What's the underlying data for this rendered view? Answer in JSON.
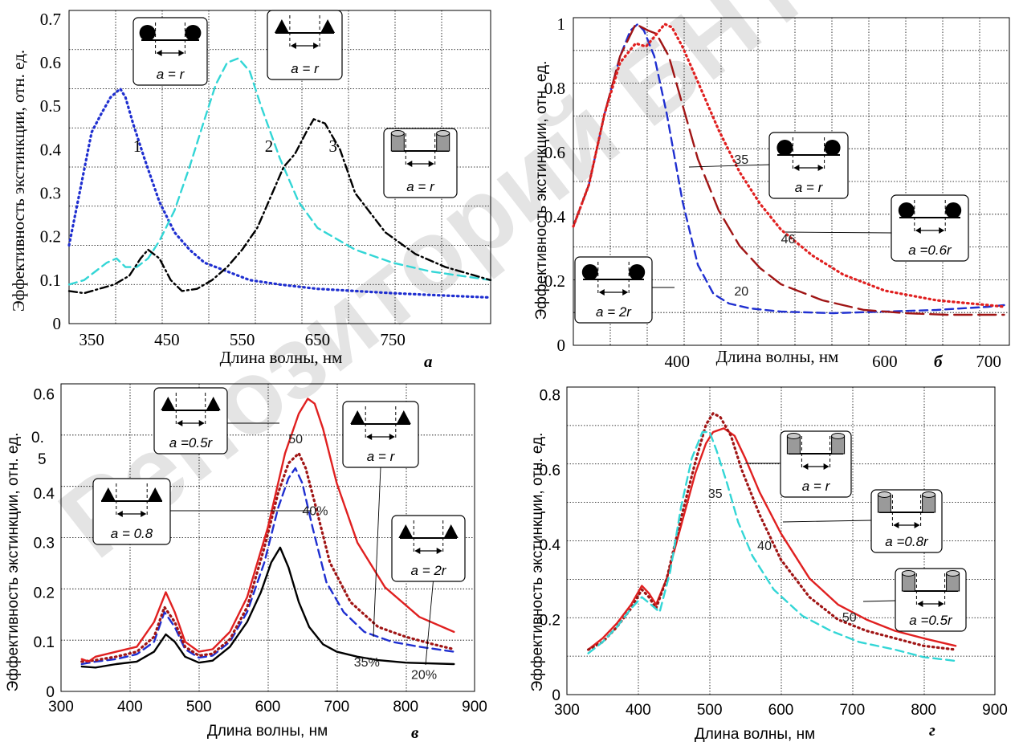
{
  "chart_data": [
    {
      "id": "a",
      "type": "line",
      "panel_label": "а",
      "xlabel": "Длина волны, нм",
      "ylabel": "Эффективность экстинкции, отн. ед.",
      "xlim": [
        320,
        880
      ],
      "ylim": [
        0,
        0.72
      ],
      "xticks": [
        350,
        450,
        550,
        650,
        750
      ],
      "xtick_labels": [
        "350",
        "450",
        "550",
        "650",
        "750"
      ],
      "yticks": [
        0,
        0.1,
        0.2,
        0.3,
        0.4,
        0.5,
        0.6,
        0.7
      ],
      "ytick_labels": [
        "0",
        "0.1",
        "0.2",
        "0.3",
        "0.4",
        "0.5",
        "0.6",
        "0.7"
      ],
      "grid": true,
      "series": [
        {
          "color": "#1f2fd0",
          "style": "dotted",
          "x": [
            320,
            335,
            350,
            362,
            375,
            388,
            395,
            405,
            420,
            440,
            460,
            480,
            500,
            530,
            560,
            600,
            650,
            700,
            750,
            800,
            880
          ],
          "y": [
            0.18,
            0.31,
            0.44,
            0.48,
            0.52,
            0.54,
            0.52,
            0.46,
            0.38,
            0.28,
            0.21,
            0.17,
            0.14,
            0.12,
            0.1,
            0.09,
            0.08,
            0.075,
            0.07,
            0.066,
            0.06
          ]
        },
        {
          "color": "#33d6d6",
          "style": "dashed",
          "x": [
            320,
            340,
            355,
            370,
            383,
            395,
            410,
            425,
            440,
            460,
            480,
            500,
            515,
            530,
            545,
            560,
            575,
            600,
            625,
            650,
            700,
            750,
            800,
            880
          ],
          "y": [
            0.09,
            0.1,
            0.12,
            0.14,
            0.15,
            0.13,
            0.13,
            0.15,
            0.19,
            0.26,
            0.36,
            0.47,
            0.55,
            0.6,
            0.61,
            0.58,
            0.5,
            0.38,
            0.28,
            0.22,
            0.17,
            0.14,
            0.12,
            0.1
          ]
        },
        {
          "color": "#000000",
          "style": "dashdot",
          "x": [
            320,
            340,
            360,
            380,
            400,
            415,
            425,
            440,
            455,
            470,
            490,
            510,
            530,
            550,
            570,
            590,
            605,
            620,
            635,
            645,
            660,
            680,
            700,
            740,
            780,
            820,
            880
          ],
          "y": [
            0.075,
            0.07,
            0.08,
            0.09,
            0.11,
            0.15,
            0.17,
            0.15,
            0.1,
            0.075,
            0.08,
            0.1,
            0.13,
            0.17,
            0.22,
            0.3,
            0.36,
            0.39,
            0.44,
            0.47,
            0.46,
            0.4,
            0.3,
            0.21,
            0.16,
            0.13,
            0.1
          ]
        }
      ],
      "curve_labels": [
        {
          "text": "1",
          "x": 405,
          "y": 0.395
        },
        {
          "text": "2",
          "x": 580,
          "y": 0.395
        },
        {
          "text": "3",
          "x": 665,
          "y": 0.395
        }
      ],
      "insets": [
        {
          "shape": "spheres",
          "label": "a = r"
        },
        {
          "shape": "triangles",
          "label": "a = r"
        },
        {
          "shape": "cylinders",
          "label": "a = r"
        }
      ]
    },
    {
      "id": "b",
      "type": "line",
      "panel_label": "б",
      "xlabel": "Длина волны, нм",
      "ylabel": "Эффективность экстинкции, отн. ед.",
      "xlim": [
        300,
        720
      ],
      "ylim": [
        0,
        1.02
      ],
      "xticks": [
        400,
        600,
        700
      ],
      "xtick_labels": [
        "400",
        "600",
        "700"
      ],
      "yticks": [
        0,
        0.2,
        0.4,
        0.6,
        0.8,
        1.0
      ],
      "ytick_labels": [
        "0",
        "0.2",
        "0.4",
        "0.6",
        "0.8",
        "1"
      ],
      "grid": true,
      "series": [
        {
          "color": "#1f2fd0",
          "style": "dashed",
          "x": [
            300,
            315,
            330,
            345,
            355,
            362,
            368,
            378,
            390,
            405,
            420,
            435,
            450,
            470,
            500,
            550,
            600,
            650,
            700,
            715
          ],
          "y": [
            0.37,
            0.5,
            0.72,
            0.9,
            0.98,
            1.0,
            0.98,
            0.9,
            0.72,
            0.45,
            0.25,
            0.16,
            0.13,
            0.115,
            0.105,
            0.1,
            0.105,
            0.11,
            0.12,
            0.125
          ]
        },
        {
          "color": "#a01515",
          "style": "longdash",
          "x": [
            300,
            315,
            330,
            345,
            360,
            372,
            380,
            392,
            405,
            420,
            440,
            460,
            480,
            500,
            540,
            580,
            620,
            660,
            700,
            715
          ],
          "y": [
            0.37,
            0.5,
            0.72,
            0.9,
            1.0,
            0.98,
            0.97,
            0.9,
            0.75,
            0.58,
            0.42,
            0.31,
            0.24,
            0.19,
            0.14,
            0.11,
            0.1,
            0.095,
            0.095,
            0.095
          ]
        },
        {
          "color": "#e02020",
          "style": "dotted",
          "x": [
            300,
            315,
            330,
            345,
            360,
            370,
            378,
            388,
            395,
            405,
            420,
            440,
            460,
            480,
            500,
            530,
            560,
            600,
            650,
            700,
            715
          ],
          "y": [
            0.37,
            0.5,
            0.72,
            0.88,
            0.94,
            0.93,
            0.96,
            1.0,
            0.99,
            0.93,
            0.82,
            0.67,
            0.54,
            0.44,
            0.36,
            0.28,
            0.22,
            0.17,
            0.14,
            0.125,
            0.12
          ]
        }
      ],
      "curve_labels": [
        {
          "text": "35",
          "x": 455,
          "y": 0.565
        },
        {
          "text": "46",
          "x": 500,
          "y": 0.318
        },
        {
          "text": "20",
          "x": 455,
          "y": 0.155
        }
      ],
      "insets": [
        {
          "shape": "spheres",
          "label": "a = r"
        },
        {
          "shape": "spheres",
          "label": "a =0.6r"
        },
        {
          "shape": "spheres",
          "label": "a = 2r"
        }
      ]
    },
    {
      "id": "v",
      "type": "line",
      "panel_label": "в",
      "xlabel": "Длина волны, нм",
      "ylabel": "Эффективность экстинкции, отн. ед.",
      "xlim": [
        300,
        900
      ],
      "ylim": [
        0,
        0.62
      ],
      "xticks": [
        300,
        400,
        500,
        600,
        700,
        800,
        900
      ],
      "xtick_labels": [
        "300",
        "400",
        "500",
        "600",
        "700",
        "800",
        "900"
      ],
      "yticks": [
        0,
        0.1,
        0.2,
        0.3,
        0.4,
        0.6
      ],
      "ytick_labels": [
        "0",
        "0.1",
        "0.2",
        "0.3",
        "0.4",
        "0.6"
      ],
      "extra_ylabel_text": [
        "0.",
        "5"
      ],
      "grid": true,
      "series": [
        {
          "color": "#000000",
          "style": "solid",
          "x": [
            330,
            350,
            380,
            410,
            435,
            452,
            465,
            480,
            500,
            520,
            545,
            570,
            590,
            605,
            618,
            630,
            645,
            660,
            680,
            700,
            730,
            760,
            800,
            870
          ],
          "y": [
            0.05,
            0.048,
            0.055,
            0.06,
            0.08,
            0.115,
            0.1,
            0.07,
            0.058,
            0.062,
            0.09,
            0.14,
            0.2,
            0.26,
            0.29,
            0.25,
            0.18,
            0.13,
            0.095,
            0.08,
            0.07,
            0.063,
            0.058,
            0.055
          ]
        },
        {
          "color": "#1f2fd0",
          "style": "dashed",
          "x": [
            330,
            350,
            380,
            410,
            435,
            450,
            465,
            480,
            500,
            520,
            545,
            570,
            595,
            615,
            630,
            640,
            650,
            665,
            685,
            710,
            740,
            780,
            820,
            870
          ],
          "y": [
            0.055,
            0.06,
            0.065,
            0.075,
            0.1,
            0.16,
            0.13,
            0.085,
            0.068,
            0.072,
            0.1,
            0.16,
            0.26,
            0.37,
            0.43,
            0.45,
            0.42,
            0.33,
            0.22,
            0.16,
            0.12,
            0.1,
            0.09,
            0.08
          ]
        },
        {
          "color": "#a01515",
          "style": "dotted",
          "x": [
            330,
            350,
            380,
            410,
            435,
            450,
            465,
            480,
            500,
            520,
            545,
            570,
            595,
            615,
            630,
            645,
            655,
            670,
            690,
            720,
            760,
            800,
            840,
            870
          ],
          "y": [
            0.06,
            0.063,
            0.07,
            0.08,
            0.11,
            0.17,
            0.14,
            0.09,
            0.072,
            0.076,
            0.105,
            0.17,
            0.29,
            0.4,
            0.46,
            0.48,
            0.45,
            0.37,
            0.26,
            0.18,
            0.13,
            0.11,
            0.095,
            0.085
          ]
        },
        {
          "color": "#e02020",
          "style": "solid",
          "x": [
            330,
            340,
            350,
            380,
            410,
            435,
            452,
            465,
            480,
            500,
            520,
            545,
            570,
            600,
            625,
            645,
            658,
            668,
            680,
            700,
            730,
            770,
            820,
            870
          ],
          "y": [
            0.065,
            0.06,
            0.07,
            0.08,
            0.09,
            0.14,
            0.2,
            0.16,
            0.1,
            0.08,
            0.085,
            0.12,
            0.19,
            0.33,
            0.48,
            0.56,
            0.59,
            0.58,
            0.53,
            0.42,
            0.3,
            0.21,
            0.15,
            0.12
          ]
        }
      ],
      "curve_labels": [
        {
          "text": "50",
          "x": 630,
          "y": 0.5
        },
        {
          "text": "40%",
          "x": 650,
          "y": 0.355
        },
        {
          "text": "35%",
          "x": 725,
          "y": 0.05
        },
        {
          "text": "20%",
          "x": 808,
          "y": 0.025
        }
      ],
      "insets": [
        {
          "shape": "triangles",
          "label": "a =0.5r"
        },
        {
          "shape": "triangles",
          "label": "a = r"
        },
        {
          "shape": "triangles",
          "label": "a = 0.8"
        },
        {
          "shape": "triangles",
          "label": "a = 2r"
        }
      ]
    },
    {
      "id": "g",
      "type": "line",
      "panel_label": "г",
      "xlabel": "Длина волны, нм",
      "ylabel": "Эффективность экстинкции, отн. ед.",
      "xlim": [
        300,
        900
      ],
      "ylim": [
        0,
        0.82
      ],
      "xticks": [
        300,
        400,
        500,
        600,
        700,
        800,
        900
      ],
      "xtick_labels": [
        "300",
        "400",
        "500",
        "600",
        "700",
        "800",
        "900"
      ],
      "yticks": [
        0,
        0.2,
        0.4,
        0.6,
        0.8
      ],
      "ytick_labels": [
        "0",
        "0.2",
        "0.4",
        "0.6",
        "0.8"
      ],
      "grid": true,
      "series": [
        {
          "color": "#e02020",
          "style": "solid",
          "x": [
            330,
            350,
            370,
            390,
            405,
            415,
            425,
            440,
            460,
            480,
            495,
            505,
            520,
            535,
            550,
            570,
            600,
            640,
            680,
            720,
            760,
            800,
            845
          ],
          "y": [
            0.12,
            0.15,
            0.19,
            0.24,
            0.29,
            0.27,
            0.24,
            0.31,
            0.45,
            0.59,
            0.67,
            0.7,
            0.71,
            0.69,
            0.63,
            0.54,
            0.43,
            0.31,
            0.24,
            0.2,
            0.17,
            0.15,
            0.13
          ]
        },
        {
          "color": "#a01515",
          "style": "dotted",
          "x": [
            330,
            350,
            370,
            390,
            405,
            415,
            425,
            440,
            460,
            480,
            495,
            505,
            515,
            530,
            545,
            570,
            600,
            640,
            680,
            720,
            760,
            800,
            845
          ],
          "y": [
            0.12,
            0.14,
            0.18,
            0.23,
            0.28,
            0.26,
            0.23,
            0.31,
            0.47,
            0.62,
            0.72,
            0.75,
            0.74,
            0.69,
            0.6,
            0.48,
            0.36,
            0.26,
            0.2,
            0.17,
            0.15,
            0.13,
            0.12
          ]
        },
        {
          "color": "#33d6d6",
          "style": "dashed",
          "x": [
            330,
            350,
            370,
            390,
            405,
            418,
            430,
            445,
            460,
            475,
            490,
            500,
            510,
            525,
            540,
            560,
            590,
            630,
            670,
            710,
            760,
            800,
            845
          ],
          "y": [
            0.11,
            0.14,
            0.18,
            0.23,
            0.26,
            0.24,
            0.22,
            0.33,
            0.5,
            0.63,
            0.7,
            0.7,
            0.65,
            0.56,
            0.46,
            0.37,
            0.28,
            0.21,
            0.17,
            0.14,
            0.12,
            0.1,
            0.09
          ]
        }
      ],
      "curve_labels": [
        {
          "text": "35",
          "x": 498,
          "y": 0.525
        },
        {
          "text": "40",
          "x": 567,
          "y": 0.385
        },
        {
          "text": "50",
          "x": 686,
          "y": 0.195
        }
      ],
      "insets": [
        {
          "shape": "cylinders",
          "label": "a = r"
        },
        {
          "shape": "cylinders",
          "label": "a =0.8r"
        },
        {
          "shape": "cylinders",
          "label": "a =0.5r"
        }
      ]
    }
  ],
  "watermark": "Репозиторий БНТУ"
}
